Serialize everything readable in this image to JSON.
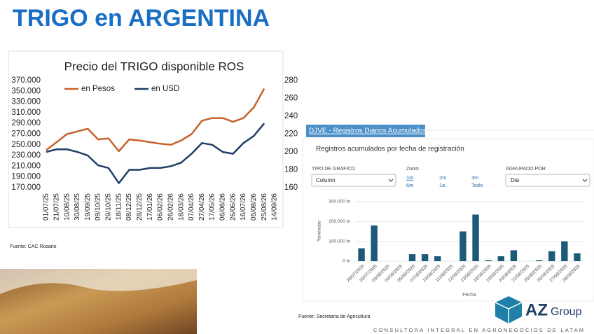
{
  "header": {
    "title": "TRIGO en ARGENTINA"
  },
  "chart_data": [
    {
      "type": "line",
      "title": "Precio del TRIGO disponible ROS",
      "categories": [
        "01/07/25",
        "21/07/25",
        "10/08/25",
        "30/08/25",
        "19/09/25",
        "09/10/25",
        "29/10/25",
        "18/11/25",
        "08/12/25",
        "28/12/25",
        "17/01/26",
        "06/02/26",
        "26/02/26",
        "18/03/26",
        "07/04/26",
        "27/04/26",
        "17/05/26",
        "06/06/26",
        "26/06/26",
        "16/07/26",
        "05/08/26",
        "25/08/26",
        "14/09/26"
      ],
      "series": [
        {
          "name": "en Pesos",
          "color": "#c5622a",
          "values": [
            240000,
            255000,
            270000,
            275000,
            280000,
            260000,
            262000,
            238000,
            260000,
            258000,
            255000,
            252000,
            250000,
            258000,
            270000,
            295000,
            300000,
            300000,
            293000,
            300000,
            320000,
            355000,
            null
          ]
        },
        {
          "name": "en USD",
          "color": "#1f3e66",
          "axis": "y2",
          "values": [
            200,
            203,
            203,
            200,
            196,
            185,
            182,
            165,
            180,
            180,
            182,
            182,
            184,
            188,
            198,
            210,
            208,
            200,
            198,
            210,
            218,
            232,
            null
          ]
        }
      ],
      "ylim": [
        170000,
        370000
      ],
      "yticks": [
        {
          "value": 170000,
          "label": "170.000"
        },
        {
          "value": 190000,
          "label": "190.000"
        },
        {
          "value": 210000,
          "label": "210.000"
        },
        {
          "value": 230000,
          "label": "230.000"
        },
        {
          "value": 250000,
          "label": "250.000"
        },
        {
          "value": 270000,
          "label": "270.000"
        },
        {
          "value": 290000,
          "label": "290.000"
        },
        {
          "value": 310000,
          "label": "310.000"
        },
        {
          "value": 330000,
          "label": "330.000"
        },
        {
          "value": 350000,
          "label": "350.000"
        },
        {
          "value": 370000,
          "label": "370.000"
        }
      ],
      "y2lim": [
        160,
        280
      ],
      "y2ticks": [
        160,
        180,
        200,
        220,
        240,
        260,
        280
      ],
      "grid": false,
      "legend": "top",
      "source": "Fuente: CAC Rosario"
    },
    {
      "type": "bar",
      "title": "DJVE - Registros Diarios Acumulados",
      "subtitle": "Registros acumulados por fecha de registración",
      "categories": [
        "29/07/2026",
        "30/07/2026",
        "03/08/2026",
        "04/08/2026",
        "05/08/2026",
        "07/08/2026",
        "10/08/2026",
        "11/08/2026",
        "12/08/2026",
        "13/08/2026",
        "18/08/2026",
        "19/08/2026",
        "20/08/2026",
        "21/08/2026",
        "25/08/2026",
        "26/08/2026",
        "27/08/2026",
        "28/08/2026"
      ],
      "values": [
        65000,
        180000,
        0,
        0,
        35000,
        35000,
        25000,
        0,
        150000,
        235000,
        5000,
        25000,
        55000,
        0,
        5000,
        50000,
        100000,
        40000
      ],
      "color": "#1c5a78",
      "ylim": [
        0,
        300000
      ],
      "yticks": [
        {
          "value": 0,
          "label": "0 tn"
        },
        {
          "value": 100000,
          "label": "100,000 tn"
        },
        {
          "value": 200000,
          "label": "200,000 tn"
        },
        {
          "value": 300000,
          "label": "300,000 tn"
        }
      ],
      "y_label": "Toneladas",
      "x_label": "Fecha",
      "grid": true,
      "source": "Fuente: Secretaria de Agricultura"
    }
  ],
  "controls": {
    "chart_type_label": "TIPO DE GRAFICO",
    "chart_type": "Column",
    "zoom_label": "Zoom",
    "zoom_options": [
      "1m",
      "2m",
      "3m",
      "6m",
      "1a",
      "Todo"
    ],
    "group_label": "AGRUPADO POR:",
    "group": "Dia"
  },
  "footer": {
    "logo_main": "AZ",
    "logo_sub": "Group",
    "tagline": "CONSULTORA INTEGRAL EN AGRONEGOCIOS DE LATAM"
  }
}
